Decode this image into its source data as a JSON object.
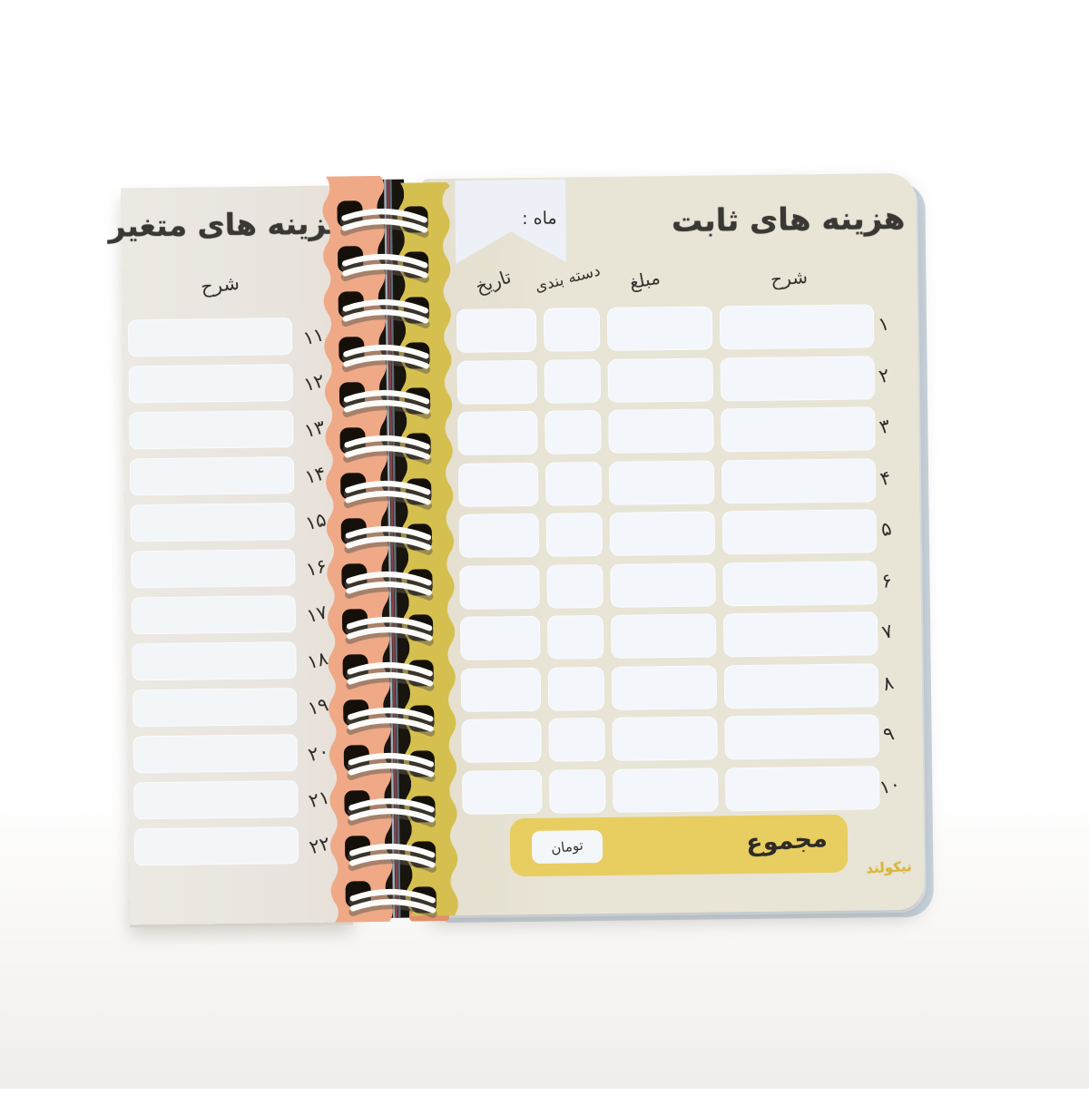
{
  "left_page": {
    "title": "هزینه های متغیر",
    "column_header": "شرح",
    "row_numbers": [
      "۱۱",
      "۱۲",
      "۱۳",
      "۱۴",
      "۱۵",
      "۱۶",
      "۱۷",
      "۱۸",
      "۱۹",
      "۲۰",
      "۲۱",
      "۲۲"
    ]
  },
  "right_page": {
    "title": "هزینه های ثابت",
    "month_label": "ماه :",
    "headers": {
      "description": "شرح",
      "amount": "مبلغ",
      "category": "دسته بندی",
      "date": "تاریخ"
    },
    "row_numbers": [
      "۱",
      "۲",
      "۳",
      "۴",
      "۵",
      "۶",
      "۷",
      "۸",
      "۹",
      "۱۰"
    ],
    "total_label": "مجموع",
    "currency_label": "تومان",
    "brand_logo": "نیکولند"
  },
  "colors": {
    "left_page_bg": "#e9e4de",
    "right_page_bg": "#e8e4d6",
    "cell_bg": "#f3f6fa",
    "salmon_edge": "#efa987",
    "yellow_edge": "#d5c04f",
    "binding_gap": "#18140e",
    "total_bar_bg": "#e8cd60",
    "banner_bg": "#edf1f7",
    "title_text": "#3a3834",
    "logo_gold": "#d9b83e",
    "wire": "#fbfbf9"
  }
}
